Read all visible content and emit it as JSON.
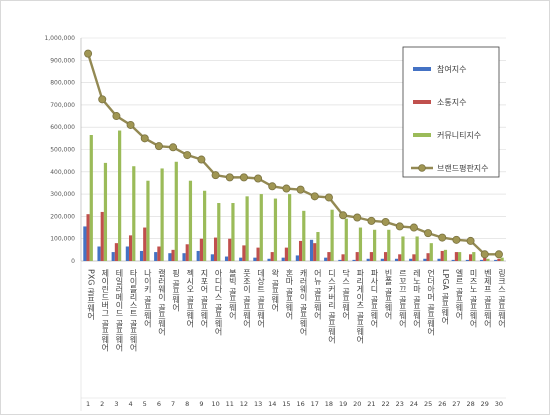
{
  "chart_data": {
    "type": "bar",
    "ylim": [
      0,
      1000000
    ],
    "yticks": [
      "0",
      "100,000",
      "200,000",
      "300,000",
      "400,000",
      "500,000",
      "600,000",
      "700,000",
      "800,000",
      "900,000",
      "1,000,000"
    ],
    "grid": true,
    "legend_position": "right",
    "rank_labels": [
      "1",
      "2",
      "3",
      "4",
      "5",
      "6",
      "7",
      "8",
      "9",
      "10",
      "11",
      "12",
      "13",
      "14",
      "15",
      "16",
      "17",
      "18",
      "19",
      "20",
      "21",
      "22",
      "23",
      "24",
      "25",
      "26",
      "27",
      "28",
      "29",
      "30"
    ],
    "categories": [
      "PXG 골프웨어",
      "제이린드버그 골프웨어",
      "테일러메이드 골프웨어",
      "타이틀리스트 골프웨어",
      "나이키 골프웨어",
      "캘러웨이 골프웨어",
      "핑 골프웨어",
      "젝시오 골프웨어",
      "지포어 골프웨어",
      "아디다스 골프웨어",
      "볼빅 골프웨어",
      "풋조이 골프웨어",
      "데상트 골프웨어",
      "왁 골프웨어",
      "혼마 골프웨어",
      "캐러웨이 골프웨어",
      "어뉴 골프웨어",
      "디스커버리 골프웨어",
      "닥스 골프웨어",
      "파리게이츠 골프웨어",
      "파사디 골프웨어",
      "빈폴 골프웨어",
      "르꼬끄 골프웨어",
      "레노마 골프웨어",
      "언더아머 골프웨어",
      "LPGA 골프웨어",
      "엘르 골프웨어",
      "미즈노 골프웨어",
      "벤제프 골프웨어",
      "링크스 골프웨어"
    ],
    "series": [
      {
        "name": "참여지수",
        "color": "#4472c4",
        "values": [
          155000,
          65000,
          40000,
          65000,
          45000,
          40000,
          35000,
          35000,
          45000,
          30000,
          20000,
          15000,
          15000,
          10000,
          15000,
          25000,
          95000,
          15000,
          5000,
          5000,
          10000,
          10000,
          10000,
          10000,
          10000,
          10000,
          5000,
          5000,
          5000,
          5000
        ]
      },
      {
        "name": "소통지수",
        "color": "#c0504d",
        "values": [
          210000,
          220000,
          80000,
          115000,
          150000,
          65000,
          50000,
          75000,
          100000,
          105000,
          100000,
          70000,
          60000,
          40000,
          60000,
          90000,
          80000,
          40000,
          30000,
          40000,
          40000,
          40000,
          30000,
          30000,
          35000,
          45000,
          40000,
          30000,
          15000,
          10000
        ]
      },
      {
        "name": "커뮤니티지수",
        "color": "#9bbb59",
        "values": [
          565000,
          440000,
          585000,
          425000,
          360000,
          415000,
          445000,
          360000,
          315000,
          260000,
          260000,
          290000,
          300000,
          280000,
          300000,
          225000,
          130000,
          230000,
          190000,
          150000,
          140000,
          140000,
          110000,
          110000,
          80000,
          50000,
          40000,
          40000,
          10000,
          15000
        ]
      },
      {
        "name": "브랜드평판지수",
        "color": "#938953",
        "line": true,
        "values": [
          930000,
          725000,
          650000,
          610000,
          550000,
          515000,
          510000,
          475000,
          455000,
          385000,
          375000,
          375000,
          370000,
          335000,
          325000,
          320000,
          290000,
          285000,
          205000,
          195000,
          180000,
          175000,
          155000,
          150000,
          125000,
          105000,
          95000,
          90000,
          30000,
          30000
        ]
      }
    ]
  }
}
